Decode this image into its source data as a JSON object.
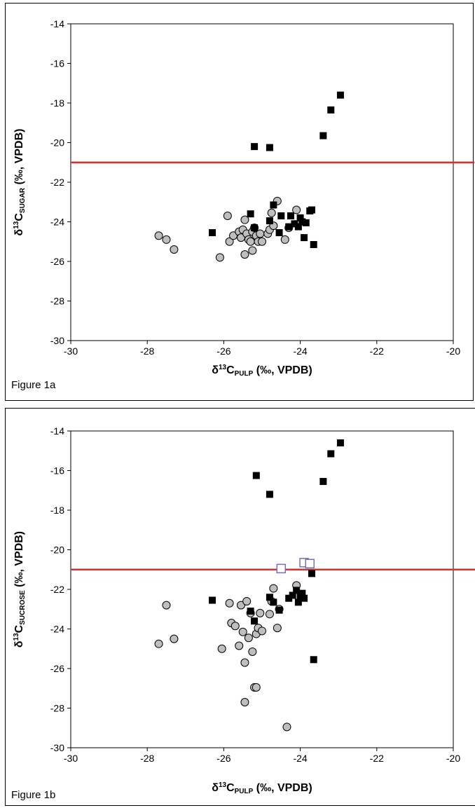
{
  "colors": {
    "circle_fill": "#bebebe",
    "square_fill": "#000000",
    "open_square_stroke": "#7b6fb2",
    "threshold_line": "#e0302c"
  },
  "figures": [
    {
      "label": "Figure 1a"
    },
    {
      "label": "Figure 1b"
    }
  ],
  "chart_data": [
    {
      "type": "scatter",
      "figure_label": "Figure 1a",
      "xlabel": {
        "prefix": "δ",
        "sup": "13",
        "main": "C",
        "sub": "PULP",
        "suffix": " (‰, VPDB)"
      },
      "ylabel": {
        "prefix": "δ",
        "sup": "13",
        "main": "C",
        "sub": "SUGAR",
        "suffix": " (‰, VPDB)"
      },
      "xlim": [
        -30,
        -20
      ],
      "ylim": [
        -30,
        -14
      ],
      "xticks": [
        -30,
        -28,
        -26,
        -24,
        -22,
        -20
      ],
      "yticks": [
        -30,
        -28,
        -26,
        -24,
        -22,
        -20,
        -18,
        -16,
        -14
      ],
      "grid": false,
      "threshold_y": -21,
      "series": [
        {
          "marker": "circle",
          "points": [
            [
              -27.7,
              -24.7
            ],
            [
              -27.5,
              -24.9
            ],
            [
              -27.3,
              -25.4
            ],
            [
              -26.1,
              -25.8
            ],
            [
              -25.9,
              -23.7
            ],
            [
              -25.85,
              -25.0
            ],
            [
              -25.75,
              -24.7
            ],
            [
              -25.6,
              -24.5
            ],
            [
              -25.55,
              -24.8
            ],
            [
              -25.5,
              -24.4
            ],
            [
              -25.45,
              -25.65
            ],
            [
              -25.45,
              -23.9
            ],
            [
              -25.4,
              -24.6
            ],
            [
              -25.35,
              -24.9
            ],
            [
              -25.3,
              -25.0
            ],
            [
              -25.25,
              -24.5
            ],
            [
              -25.2,
              -24.3
            ],
            [
              -25.15,
              -24.7
            ],
            [
              -25.1,
              -25.0
            ],
            [
              -25.05,
              -24.6
            ],
            [
              -25.0,
              -25.0
            ],
            [
              -25.25,
              -25.45
            ],
            [
              -24.85,
              -24.6
            ],
            [
              -24.8,
              -24.4
            ],
            [
              -24.75,
              -23.55
            ],
            [
              -24.7,
              -24.2
            ],
            [
              -24.6,
              -22.95
            ],
            [
              -24.4,
              -24.9
            ],
            [
              -24.3,
              -24.3
            ],
            [
              -24.1,
              -23.4
            ]
          ]
        },
        {
          "marker": "square",
          "points": [
            [
              -26.3,
              -24.55
            ],
            [
              -25.3,
              -23.6
            ],
            [
              -25.2,
              -24.3
            ],
            [
              -25.2,
              -20.2
            ],
            [
              -24.8,
              -20.25
            ],
            [
              -24.8,
              -23.95
            ],
            [
              -24.7,
              -23.15
            ],
            [
              -24.55,
              -24.55
            ],
            [
              -24.5,
              -23.7
            ],
            [
              -24.3,
              -24.25
            ],
            [
              -24.25,
              -23.7
            ],
            [
              -24.15,
              -24.1
            ],
            [
              -24.05,
              -24.25
            ],
            [
              -24.0,
              -23.8
            ],
            [
              -23.95,
              -24.0
            ],
            [
              -23.9,
              -24.8
            ],
            [
              -23.85,
              -24.05
            ],
            [
              -23.75,
              -23.45
            ],
            [
              -23.7,
              -23.4
            ],
            [
              -23.65,
              -25.15
            ],
            [
              -23.4,
              -19.65
            ],
            [
              -23.2,
              -18.35
            ],
            [
              -22.95,
              -17.6
            ]
          ]
        }
      ]
    },
    {
      "type": "scatter",
      "figure_label": "Figure 1b",
      "xlabel": {
        "prefix": "δ",
        "sup": "13",
        "main": "C",
        "sub": "PULP",
        "suffix": " (‰, VPDB)"
      },
      "ylabel": {
        "prefix": "δ",
        "sup": "13",
        "main": "C",
        "sub": "SUCROSE",
        "suffix": " (‰, VPDB)"
      },
      "xlim": [
        -30,
        -20
      ],
      "ylim": [
        -30,
        -14
      ],
      "xticks": [
        -30,
        -28,
        -26,
        -24,
        -22,
        -20
      ],
      "yticks": [
        -30,
        -28,
        -26,
        -24,
        -22,
        -20,
        -18,
        -16,
        -14
      ],
      "grid": false,
      "threshold_y": -21,
      "series": [
        {
          "marker": "circle",
          "points": [
            [
              -27.7,
              -24.75
            ],
            [
              -27.5,
              -22.8
            ],
            [
              -27.3,
              -24.5
            ],
            [
              -26.05,
              -25.0
            ],
            [
              -25.85,
              -22.7
            ],
            [
              -25.8,
              -23.7
            ],
            [
              -25.7,
              -23.85
            ],
            [
              -25.6,
              -24.85
            ],
            [
              -25.55,
              -22.8
            ],
            [
              -25.5,
              -24.15
            ],
            [
              -25.45,
              -25.7
            ],
            [
              -25.45,
              -27.7
            ],
            [
              -25.4,
              -22.6
            ],
            [
              -25.35,
              -24.45
            ],
            [
              -25.3,
              -23.2
            ],
            [
              -25.25,
              -25.15
            ],
            [
              -25.2,
              -26.95
            ],
            [
              -25.15,
              -26.95
            ],
            [
              -25.15,
              -24.25
            ],
            [
              -25.1,
              -23.95
            ],
            [
              -25.05,
              -23.2
            ],
            [
              -25.0,
              -24.1
            ],
            [
              -24.8,
              -23.25
            ],
            [
              -24.75,
              -22.6
            ],
            [
              -24.7,
              -21.95
            ],
            [
              -24.6,
              -23.95
            ],
            [
              -24.55,
              -23.0
            ],
            [
              -24.35,
              -28.95
            ],
            [
              -24.1,
              -21.8
            ]
          ]
        },
        {
          "marker": "square",
          "points": [
            [
              -26.3,
              -22.55
            ],
            [
              -25.3,
              -23.1
            ],
            [
              -25.2,
              -23.6
            ],
            [
              -25.15,
              -16.25
            ],
            [
              -24.8,
              -17.2
            ],
            [
              -24.8,
              -22.4
            ],
            [
              -24.7,
              -22.65
            ],
            [
              -24.55,
              -23.05
            ],
            [
              -24.3,
              -22.45
            ],
            [
              -24.2,
              -22.3
            ],
            [
              -24.1,
              -22.05
            ],
            [
              -24.05,
              -22.65
            ],
            [
              -24.0,
              -22.35
            ],
            [
              -23.95,
              -22.2
            ],
            [
              -23.9,
              -22.45
            ],
            [
              -23.7,
              -21.2
            ],
            [
              -23.65,
              -25.55
            ],
            [
              -23.4,
              -16.55
            ],
            [
              -23.2,
              -15.15
            ],
            [
              -22.95,
              -14.6
            ]
          ]
        },
        {
          "marker": "open-square",
          "points": [
            [
              -24.5,
              -20.95
            ],
            [
              -23.9,
              -20.65
            ],
            [
              -23.75,
              -20.7
            ]
          ]
        }
      ]
    }
  ]
}
